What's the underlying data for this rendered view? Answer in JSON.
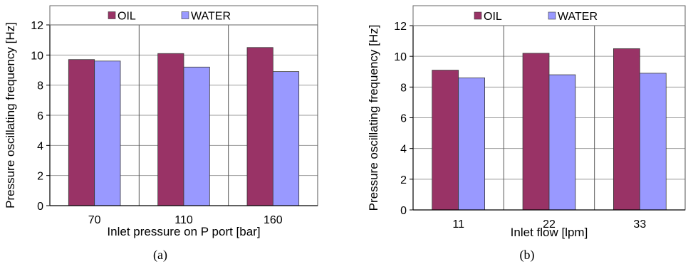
{
  "colors": {
    "oil": "#993366",
    "water": "#9999FF"
  },
  "chart_data": [
    {
      "type": "bar",
      "caption": "(a)",
      "xlabel": "Inlet pressure on P port [bar]",
      "ylabel": "Pressure oscillating frequency  [Hz]",
      "ylim": [
        0,
        12
      ],
      "yticks": [
        "0",
        "2",
        "4",
        "6",
        "8",
        "10",
        "12"
      ],
      "categories": [
        "70",
        "110",
        "160"
      ],
      "series": [
        {
          "name": "OIL",
          "values": [
            9.7,
            10.1,
            10.5
          ]
        },
        {
          "name": "WATER",
          "values": [
            9.6,
            9.2,
            8.9
          ]
        }
      ],
      "grid": true,
      "legend": "top"
    },
    {
      "type": "bar",
      "caption": "(b)",
      "xlabel": "Inlet flow  [lpm]",
      "ylabel": "Pressure oscillating frequency  [Hz]",
      "ylim": [
        0,
        12
      ],
      "yticks": [
        "0",
        "2",
        "4",
        "6",
        "8",
        "10",
        "12"
      ],
      "categories": [
        "11",
        "22",
        "33"
      ],
      "series": [
        {
          "name": "OIL",
          "values": [
            9.1,
            10.2,
            10.5
          ]
        },
        {
          "name": "WATER",
          "values": [
            8.6,
            8.8,
            8.9
          ]
        }
      ],
      "grid": true,
      "legend": "top"
    }
  ]
}
